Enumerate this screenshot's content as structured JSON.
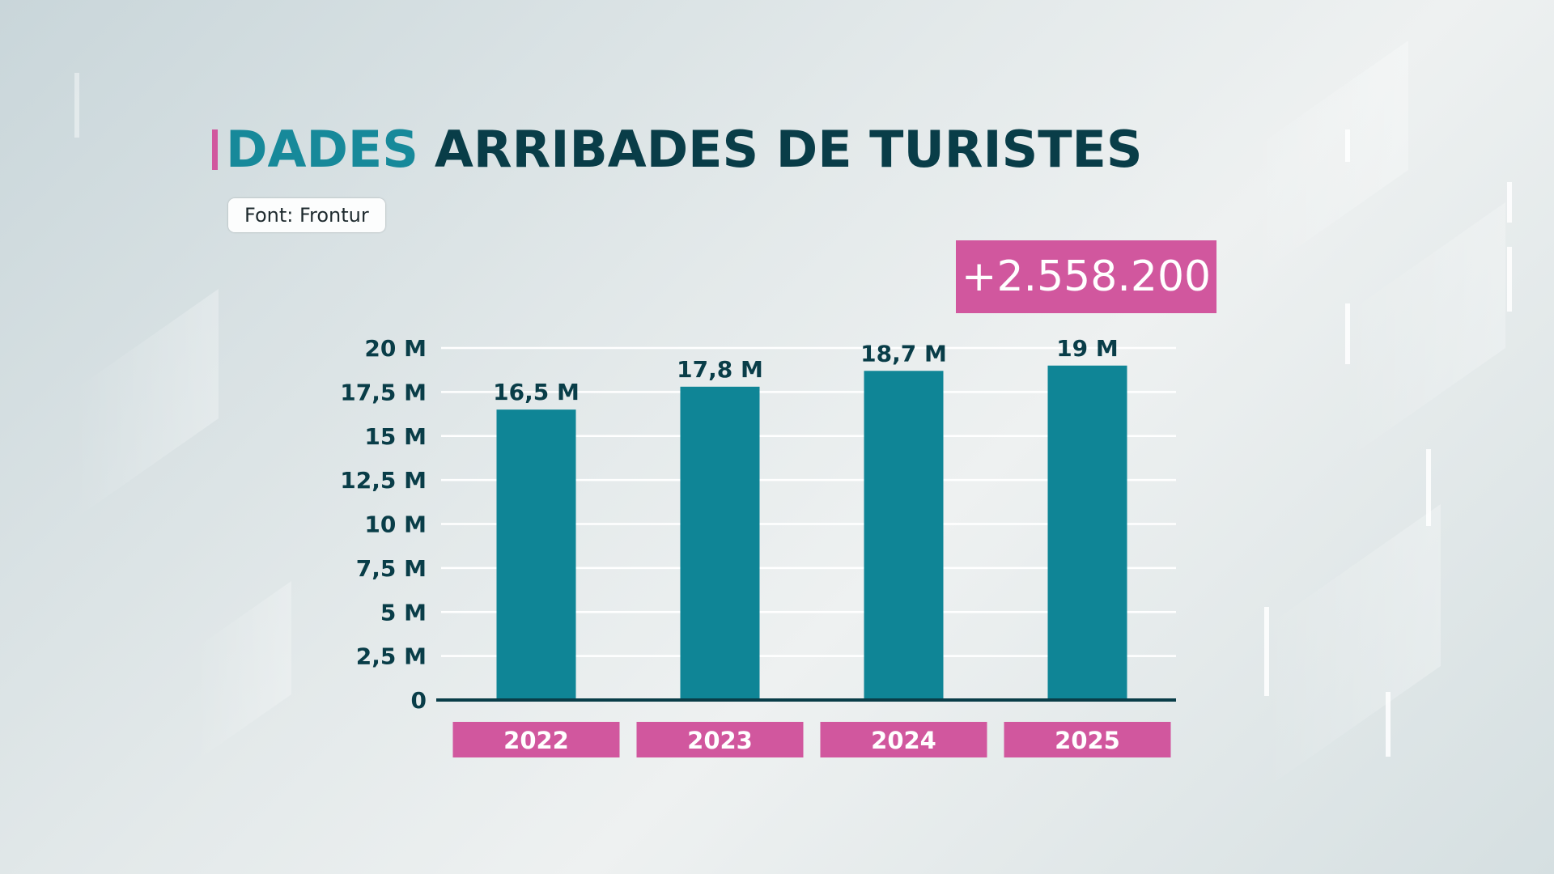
{
  "title_tag": "DADES",
  "title": "ARRIBADES DE TURISTES",
  "source": "Font: Frontur",
  "callout": "+2.558.200",
  "colors": {
    "bar": "#0f8596",
    "category_tag": "#d1579e",
    "callout": "#d1579e",
    "title_tag": "#17899a",
    "title": "#093d48"
  },
  "chart_data": {
    "type": "bar",
    "categories": [
      "2022",
      "2023",
      "2024",
      "2025"
    ],
    "values": [
      16.5,
      17.8,
      18.7,
      19
    ],
    "value_labels": [
      "16,5 M",
      "17,8 M",
      "18,7 M",
      "19 M"
    ],
    "ylim": [
      0,
      20
    ],
    "yticks": [
      0,
      2.5,
      5,
      7.5,
      10,
      12.5,
      15,
      17.5,
      20
    ],
    "ytick_labels": [
      "0",
      "2,5 M",
      "5 M",
      "7,5 M",
      "10 M",
      "12,5 M",
      "15 M",
      "17,5 M",
      "20 M"
    ],
    "grid": true,
    "title": "ARRIBADES DE TURISTES",
    "xlabel": "",
    "ylabel": ""
  }
}
